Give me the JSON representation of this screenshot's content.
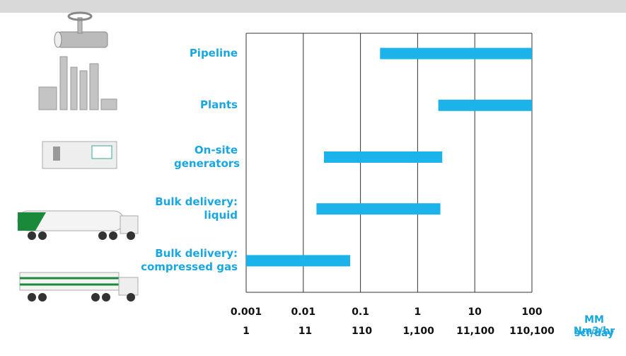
{
  "chart_data": {
    "type": "range-bar",
    "categories": [
      "Pipeline",
      "Plants",
      "On-site generators",
      "Bulk delivery: liquid",
      "Bulk delivery: compressed gas"
    ],
    "values": [
      [
        0.22,
        100
      ],
      [
        2.3,
        100
      ],
      [
        0.023,
        2.7
      ],
      [
        0.017,
        2.5
      ],
      [
        0.001,
        0.066
      ]
    ],
    "color": "#1bb3e9",
    "log_x": true,
    "xlim": [
      0.001,
      100
    ],
    "xticks": [
      0.001,
      0.01,
      0.1,
      1,
      10,
      100
    ],
    "x_label": "MM scf/day",
    "x2lim": [
      1,
      110100
    ],
    "x2ticks": [
      1,
      11,
      110,
      {
        "value": 1100,
        "label": "1,100"
      },
      {
        "value": 11100,
        "label": "11,100"
      },
      {
        "value": 110100,
        "label": "110,100"
      }
    ],
    "x2_label": "Nm3/hr",
    "grid": true
  }
}
